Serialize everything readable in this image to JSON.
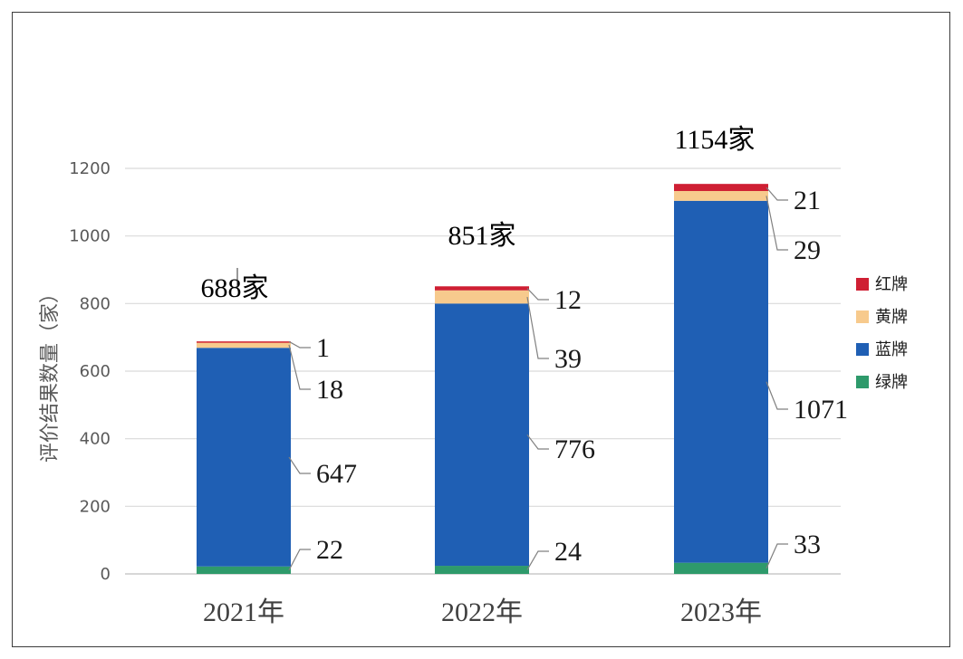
{
  "chart_data": {
    "type": "bar",
    "stacked": true,
    "categories": [
      "2021年",
      "2022年",
      "2023年"
    ],
    "ylabel": "评价结果数量（家）",
    "ylim": [
      0,
      1200
    ],
    "yticks": [
      0,
      200,
      400,
      600,
      800,
      1000,
      1200
    ],
    "grid": true,
    "legend_position": "right",
    "totals": [
      "688家",
      "851家",
      "1154家"
    ],
    "series": [
      {
        "name": "绿牌",
        "color": "#2e9a6b",
        "values": [
          22,
          24,
          33
        ]
      },
      {
        "name": "蓝牌",
        "color": "#1f5fb4",
        "values": [
          647,
          776,
          1071
        ]
      },
      {
        "name": "黄牌",
        "color": "#f7ca8d",
        "values": [
          18,
          39,
          29
        ]
      },
      {
        "name": "红牌",
        "color": "#cf1f33",
        "values": [
          1,
          12,
          21
        ]
      }
    ],
    "legend_order": [
      "红牌",
      "黄牌",
      "蓝牌",
      "绿牌"
    ]
  }
}
